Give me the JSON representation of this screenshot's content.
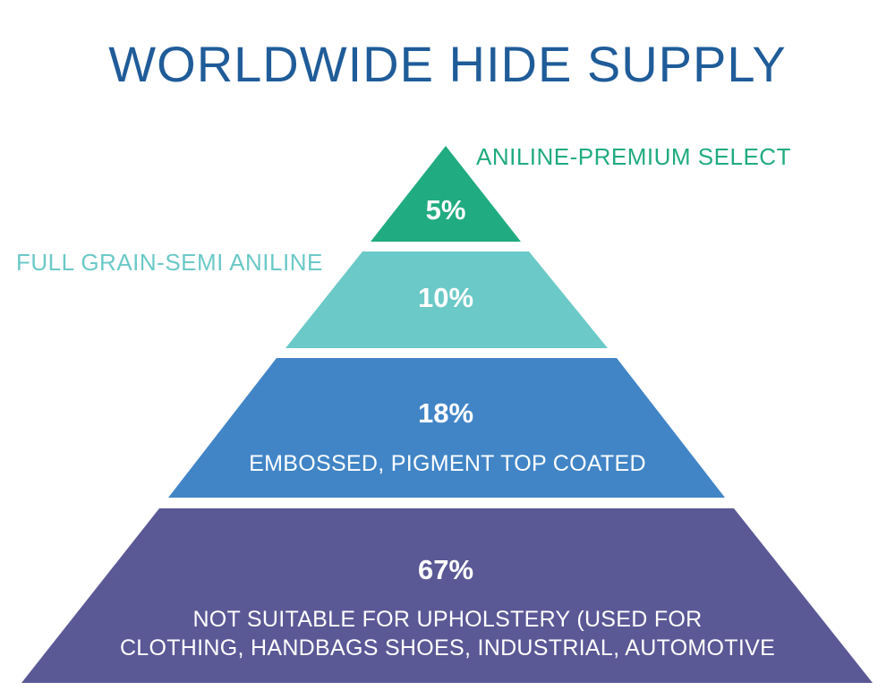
{
  "title": "WORLDWIDE HIDE SUPPLY",
  "colors": {
    "title": "#1f5c99",
    "tier1": "#20ab80",
    "tier2": "#6bc9c7",
    "tier3": "#4185c6",
    "tier4": "#5b5896",
    "text_on_tier": "#ffffff"
  },
  "tiers": [
    {
      "percent": "5%",
      "value": 5,
      "label": "ANILINE-PREMIUM SELECT"
    },
    {
      "percent": "10%",
      "value": 10,
      "label": "FULL GRAIN-SEMI ANILINE"
    },
    {
      "percent": "18%",
      "value": 18,
      "label": "EMBOSSED, PIGMENT TOP COATED"
    },
    {
      "percent": "67%",
      "value": 67,
      "label_lines": [
        "NOT SUITABLE FOR UPHOLSTERY (USED FOR",
        "CLOTHING, HANDBAGS SHOES, INDUSTRIAL, AUTOMOTIVE"
      ]
    }
  ]
}
